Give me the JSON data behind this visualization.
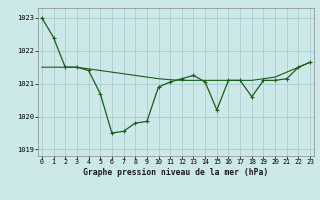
{
  "title": "Graphe pression niveau de la mer (hPa)",
  "bg_color": "#cce8e8",
  "grid_color": "#aacccc",
  "line_color": "#1a5c1a",
  "x_labels": [
    "0",
    "1",
    "2",
    "3",
    "4",
    "5",
    "6",
    "7",
    "8",
    "9",
    "10",
    "11",
    "12",
    "13",
    "14",
    "15",
    "16",
    "17",
    "18",
    "19",
    "20",
    "21",
    "22",
    "23"
  ],
  "series1": [
    1023.0,
    1022.4,
    1021.5,
    1021.5,
    1021.4,
    1020.7,
    1019.5,
    1019.55,
    1019.8,
    1019.85,
    1020.9,
    1021.05,
    1021.15,
    1021.25,
    1021.05,
    1020.2,
    1021.1,
    1021.1,
    1020.6,
    1021.1,
    1021.1,
    1021.15,
    1021.5,
    1021.65
  ],
  "smooth_line": [
    1021.5,
    1021.5,
    1021.5,
    1021.5,
    1021.45,
    1021.4,
    1021.35,
    1021.3,
    1021.25,
    1021.2,
    1021.15,
    1021.12,
    1021.1,
    1021.1,
    1021.1,
    1021.1,
    1021.1,
    1021.1,
    1021.1,
    1021.15,
    1021.2,
    1021.35,
    1021.5,
    1021.65
  ],
  "ylim": [
    1018.8,
    1023.3
  ],
  "yticks": [
    1019,
    1020,
    1021,
    1022,
    1023
  ],
  "xlim": [
    -0.3,
    23.3
  ]
}
